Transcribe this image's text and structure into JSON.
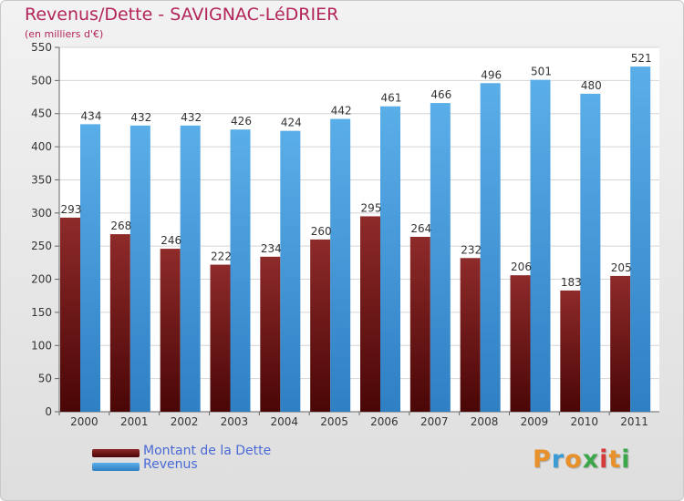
{
  "title": "Revenus/Dette - SAVIGNAC-LéDRIER",
  "subtitle": "(en milliers d'€)",
  "chart_data": {
    "type": "bar",
    "title": "Revenus/Dette - SAVIGNAC-LéDRIER",
    "subtitle": "(en milliers d'€)",
    "categories": [
      "2000",
      "2001",
      "2002",
      "2003",
      "2004",
      "2005",
      "2006",
      "2007",
      "2008",
      "2009",
      "2010",
      "2011"
    ],
    "series": [
      {
        "name": "Montant de la Dette",
        "color": "#7a1a1a",
        "values": [
          293,
          268,
          246,
          222,
          234,
          260,
          295,
          264,
          232,
          206,
          183,
          205
        ]
      },
      {
        "name": "Revenus",
        "color": "#4da3e2",
        "values": [
          434,
          432,
          432,
          426,
          424,
          442,
          461,
          466,
          496,
          501,
          480,
          521
        ]
      }
    ],
    "ylim": [
      0,
      550
    ],
    "yticks": [
      0,
      50,
      100,
      150,
      200,
      250,
      300,
      350,
      400,
      450,
      500,
      550
    ],
    "grid": true,
    "legend": "bottom-left"
  },
  "legend": [
    {
      "label": "Montant de la Dette",
      "color": "#7a1a1a"
    },
    {
      "label": "Revenus",
      "color": "#4da3e2"
    }
  ],
  "logo": {
    "letters": [
      "P",
      "r",
      "o",
      "x",
      "i",
      "t",
      "i"
    ],
    "colors": [
      "#e8902a",
      "#3a9bd6",
      "#e8902a",
      "#3aa84a",
      "#d63a3a",
      "#e8902a",
      "#3aa84a"
    ]
  }
}
